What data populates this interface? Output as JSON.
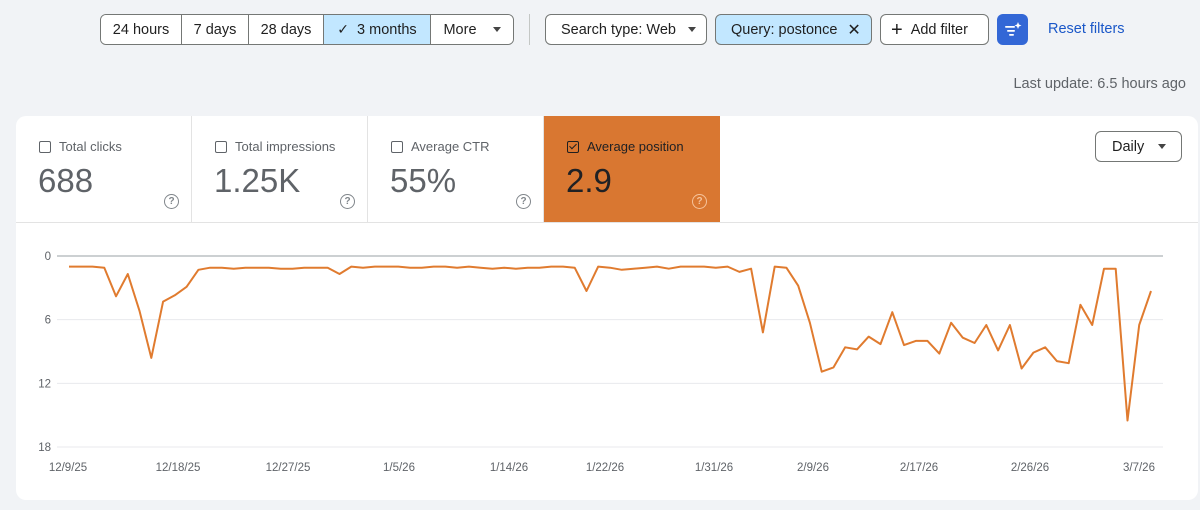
{
  "toolbar": {
    "ranges": [
      "24 hours",
      "7 days",
      "28 days",
      "3 months",
      "More"
    ],
    "selected_range": "3 months",
    "search_type": "Search type: Web",
    "query_filter": "Query: postonce",
    "add_filter": "Add filter",
    "reset": "Reset filters"
  },
  "last_update": "Last update: 6.5 hours ago",
  "metrics": [
    {
      "label": "Total clicks",
      "value": "688",
      "checked": false
    },
    {
      "label": "Total impressions",
      "value": "1.25K",
      "checked": false
    },
    {
      "label": "Average CTR",
      "value": "55%",
      "checked": false
    },
    {
      "label": "Average position",
      "value": "2.9",
      "checked": true
    }
  ],
  "granularity": "Daily",
  "colors": {
    "accent": "#d97731",
    "line": "#e07b2f",
    "chip_selected": "#c2e7ff",
    "link": "#1a57c8"
  },
  "chart_data": {
    "type": "line",
    "series": [
      {
        "name": "Average position",
        "values": [
          1,
          1,
          1,
          1.1,
          3.8,
          1.7,
          5.2,
          9.6,
          4.3,
          3.7,
          2.9,
          1.3,
          1.1,
          1.1,
          1.2,
          1.1,
          1.1,
          1.1,
          1.2,
          1.2,
          1.1,
          1.1,
          1.1,
          1.7,
          1.0,
          1.1,
          1.0,
          1.0,
          1.0,
          1.1,
          1.1,
          1.0,
          1.0,
          1.1,
          1.0,
          1.1,
          1.2,
          1.1,
          1.2,
          1.1,
          1.1,
          1.0,
          1.0,
          1.1,
          3.3,
          1.0,
          1.1,
          1.3,
          1.2,
          1.1,
          1.0,
          1.2,
          1.0,
          1.0,
          1.0,
          1.1,
          1.0,
          1.5,
          1.2,
          7.2,
          1.0,
          1.1,
          2.8,
          6.3,
          10.9,
          10.5,
          8.6,
          8.8,
          7.6,
          8.3,
          5.3,
          8.4,
          8.0,
          8.0,
          9.2,
          6.3,
          7.7,
          8.2,
          6.5,
          8.9,
          6.5,
          10.6,
          9.1,
          8.6,
          9.9,
          10.1,
          4.6,
          6.5,
          1.2,
          1.2,
          15.5,
          6.5,
          3.3
        ]
      }
    ],
    "x_tick_labels": [
      "12/9/25",
      "12/18/25",
      "12/27/25",
      "1/5/26",
      "1/14/26",
      "1/22/26",
      "1/31/26",
      "2/9/26",
      "2/17/26",
      "2/26/26",
      "3/7/26"
    ],
    "y_tick_labels": [
      "0",
      "6",
      "12",
      "18"
    ],
    "ylim": [
      0,
      18
    ],
    "y_reversed": true,
    "grid": true
  }
}
